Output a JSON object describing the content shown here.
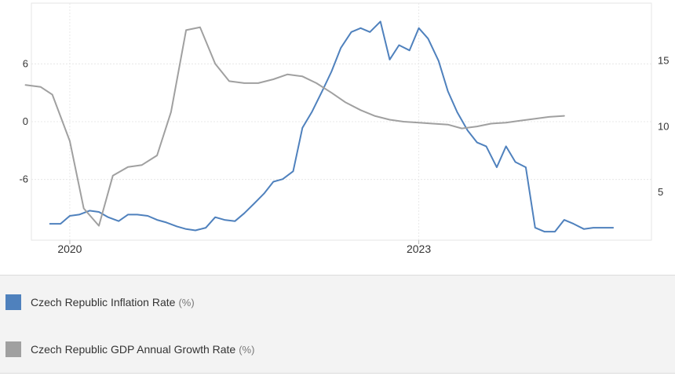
{
  "chart_data": {
    "type": "line",
    "xlim": [
      2019.67,
      2025.0
    ],
    "x_ticks": [
      {
        "value": 2020,
        "label": "2020"
      },
      {
        "value": 2023,
        "label": "2023"
      }
    ],
    "y_left": {
      "lim": [
        -12.3,
        12.3
      ],
      "ticks": [
        6,
        0,
        -6
      ],
      "tick_labels": [
        "6",
        "0",
        "-6"
      ]
    },
    "y_right": {
      "lim": [
        1.35,
        19.4
      ],
      "ticks": [
        15,
        10,
        5
      ],
      "tick_labels": [
        "15",
        "10",
        "5"
      ]
    },
    "grid": true,
    "legend_position": "bottom",
    "series": [
      {
        "name": "Czech Republic Inflation Rate",
        "unit": "(%)",
        "axis": "right",
        "color": "#4f81bd",
        "points": [
          [
            2019.83,
            2.6
          ],
          [
            2019.92,
            2.6
          ],
          [
            2020.0,
            3.2
          ],
          [
            2020.08,
            3.3
          ],
          [
            2020.17,
            3.6
          ],
          [
            2020.25,
            3.5
          ],
          [
            2020.33,
            3.1
          ],
          [
            2020.42,
            2.8
          ],
          [
            2020.5,
            3.3
          ],
          [
            2020.58,
            3.3
          ],
          [
            2020.67,
            3.2
          ],
          [
            2020.75,
            2.9
          ],
          [
            2020.83,
            2.7
          ],
          [
            2020.92,
            2.4
          ],
          [
            2021.0,
            2.2
          ],
          [
            2021.08,
            2.1
          ],
          [
            2021.17,
            2.3
          ],
          [
            2021.25,
            3.1
          ],
          [
            2021.33,
            2.9
          ],
          [
            2021.42,
            2.8
          ],
          [
            2021.5,
            3.4
          ],
          [
            2021.58,
            4.1
          ],
          [
            2021.67,
            4.9
          ],
          [
            2021.75,
            5.8
          ],
          [
            2021.83,
            6.0
          ],
          [
            2021.92,
            6.6
          ],
          [
            2022.0,
            9.9
          ],
          [
            2022.08,
            11.1
          ],
          [
            2022.17,
            12.7
          ],
          [
            2022.25,
            14.2
          ],
          [
            2022.33,
            16.0
          ],
          [
            2022.42,
            17.2
          ],
          [
            2022.5,
            17.5
          ],
          [
            2022.58,
            17.2
          ],
          [
            2022.67,
            18.0
          ],
          [
            2022.75,
            15.1
          ],
          [
            2022.83,
            16.2
          ],
          [
            2022.92,
            15.8
          ],
          [
            2023.0,
            17.5
          ],
          [
            2023.08,
            16.7
          ],
          [
            2023.17,
            15.0
          ],
          [
            2023.25,
            12.7
          ],
          [
            2023.33,
            11.1
          ],
          [
            2023.42,
            9.7
          ],
          [
            2023.5,
            8.8
          ],
          [
            2023.58,
            8.5
          ],
          [
            2023.67,
            6.9
          ],
          [
            2023.75,
            8.5
          ],
          [
            2023.83,
            7.3
          ],
          [
            2023.92,
            6.9
          ],
          [
            2024.0,
            2.3
          ],
          [
            2024.08,
            2.0
          ],
          [
            2024.17,
            2.0
          ],
          [
            2024.25,
            2.9
          ],
          [
            2024.33,
            2.6
          ],
          [
            2024.42,
            2.2
          ],
          [
            2024.5,
            2.3
          ],
          [
            2024.58,
            2.3
          ],
          [
            2024.67,
            2.3
          ]
        ]
      },
      {
        "name": "Czech Republic GDP Annual Growth Rate",
        "unit": "(%)",
        "axis": "left",
        "color": "#a0a0a0",
        "points": [
          [
            2019.62,
            3.8
          ],
          [
            2019.75,
            3.6
          ],
          [
            2019.85,
            2.8
          ],
          [
            2020.0,
            -2.0
          ],
          [
            2020.12,
            -9.0
          ],
          [
            2020.25,
            -10.8
          ],
          [
            2020.37,
            -5.6
          ],
          [
            2020.5,
            -4.7
          ],
          [
            2020.62,
            -4.5
          ],
          [
            2020.75,
            -3.5
          ],
          [
            2020.87,
            1.0
          ],
          [
            2021.0,
            9.5
          ],
          [
            2021.12,
            9.8
          ],
          [
            2021.25,
            6.0
          ],
          [
            2021.37,
            4.2
          ],
          [
            2021.5,
            4.0
          ],
          [
            2021.62,
            4.0
          ],
          [
            2021.75,
            4.4
          ],
          [
            2021.87,
            4.9
          ],
          [
            2022.0,
            4.7
          ],
          [
            2022.12,
            4.0
          ],
          [
            2022.25,
            3.0
          ],
          [
            2022.37,
            2.0
          ],
          [
            2022.5,
            1.2
          ],
          [
            2022.62,
            0.6
          ],
          [
            2022.75,
            0.2
          ],
          [
            2022.87,
            0.0
          ],
          [
            2023.0,
            -0.1
          ],
          [
            2023.12,
            -0.2
          ],
          [
            2023.25,
            -0.3
          ],
          [
            2023.37,
            -0.7
          ],
          [
            2023.5,
            -0.5
          ],
          [
            2023.62,
            -0.2
          ],
          [
            2023.75,
            -0.1
          ],
          [
            2023.87,
            0.1
          ],
          [
            2024.0,
            0.3
          ],
          [
            2024.12,
            0.5
          ],
          [
            2024.25,
            0.6
          ]
        ]
      }
    ]
  },
  "legend": {
    "items": [
      {
        "label": "Czech Republic Inflation Rate",
        "unit": "(%)",
        "color": "#4f81bd"
      },
      {
        "label": "Czech Republic GDP Annual Growth Rate",
        "unit": "(%)",
        "color": "#a0a0a0"
      }
    ]
  }
}
